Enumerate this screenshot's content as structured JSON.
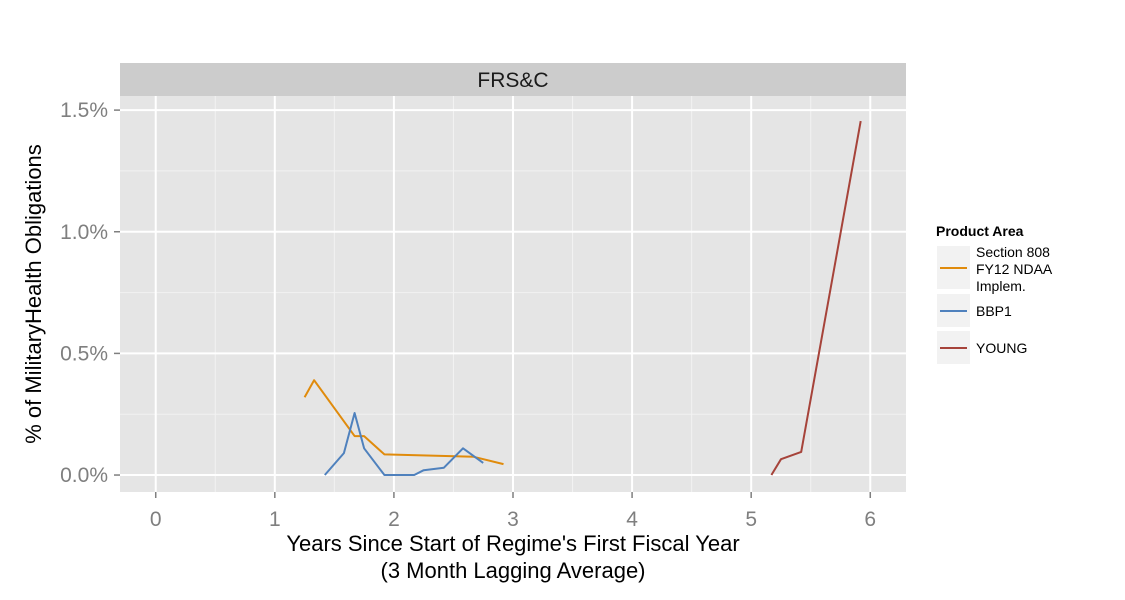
{
  "chart_data": {
    "type": "line",
    "facet_title": "FRS&C",
    "xlabel_line1": "Years Since Start of Regime's First Fiscal Year",
    "xlabel_line2": "(3 Month Lagging Average)",
    "ylabel": "% of MilitaryHealth Obligations",
    "xlim": [
      -0.3,
      6.3
    ],
    "ylim": [
      -0.000697,
      0.01558
    ],
    "x_ticks": [
      0,
      1,
      2,
      3,
      4,
      5,
      6
    ],
    "x_tick_labels": [
      "0",
      "1",
      "2",
      "3",
      "4",
      "5",
      "6"
    ],
    "y_ticks": [
      0,
      0.005,
      0.01,
      0.015
    ],
    "y_tick_labels": [
      "0.0%",
      "0.5%",
      "1.0%",
      "1.5%"
    ],
    "grid": true,
    "legend": {
      "title": "Product Area",
      "position": "right"
    },
    "series": [
      {
        "name_lines": [
          "Section 808",
          "FY12 NDAA",
          "Implem."
        ],
        "color": "#e08b0c",
        "x": [
          1.25,
          1.33,
          1.67,
          1.75,
          1.92,
          2.67,
          2.92
        ],
        "y": [
          0.0032,
          0.0039,
          0.0016,
          0.0016,
          0.00085,
          0.00075,
          0.00045
        ]
      },
      {
        "name": "BBP1",
        "color": "#4f81bd",
        "x": [
          1.42,
          1.58,
          1.67,
          1.75,
          1.92,
          2.17,
          2.25,
          2.42,
          2.58,
          2.75
        ],
        "y": [
          0.0,
          0.0009,
          0.00255,
          0.0011,
          0.0,
          0.0,
          0.0002,
          0.0003,
          0.0011,
          0.0005
        ]
      },
      {
        "name": "YOUNG",
        "color": "#a6433a",
        "x": [
          5.17,
          5.25,
          5.42,
          5.92
        ],
        "y": [
          0.0,
          0.00065,
          0.00095,
          0.01455
        ]
      }
    ]
  }
}
